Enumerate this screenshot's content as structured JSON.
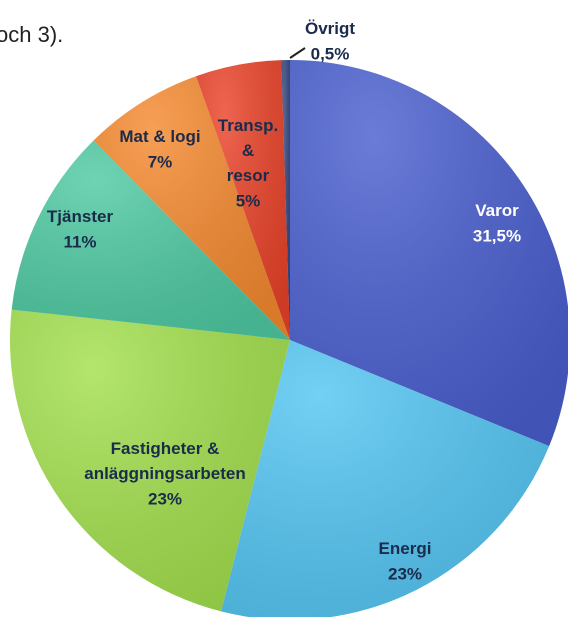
{
  "chart_data": {
    "type": "pie",
    "caption": "och 3).",
    "categories": [
      "Varor",
      "Energi",
      "Fastigheter &\nanläggningsarbeten",
      "Tjänster",
      "Mat & logi",
      "Transp.\n&\nresor",
      "Övrigt"
    ],
    "values": [
      31.5,
      23,
      23,
      11,
      7,
      5,
      0.5
    ],
    "value_labels": [
      "31,5%",
      "23%",
      "23%",
      "11%",
      "7%",
      "5%",
      "0,5%"
    ],
    "colors": [
      "#4a5fcf",
      "#55c6f3",
      "#a3e04e",
      "#4fcaa2",
      "#f58a30",
      "#ea4329",
      "#34467e"
    ],
    "label_colors": [
      "#ffffff",
      "#1b2b4b",
      "#1b2b4b",
      "#1b2b4b",
      "#1b2b4b",
      "#1b2b4b",
      "#1b2b4b"
    ]
  }
}
